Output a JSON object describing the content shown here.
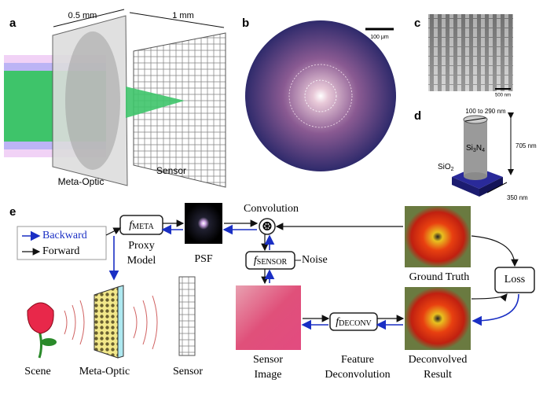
{
  "panel_a": {
    "label": "a",
    "thickness": "0.5 mm",
    "distance": "1 mm",
    "optic_label": "Meta-Optic",
    "sensor_label": "Sensor"
  },
  "panel_b": {
    "label": "b",
    "scale": "100 μm"
  },
  "panel_c": {
    "label": "c",
    "scale": "500 nm"
  },
  "panel_d": {
    "label": "d",
    "diameter": "100 to 290 nm",
    "pillar": [
      "Si",
      "3",
      "N",
      "4"
    ],
    "substrate": [
      "SiO",
      "2"
    ],
    "height": "705 nm",
    "pitch": "350 nm"
  },
  "panel_e": {
    "label": "e",
    "legend": {
      "backward": "Backward",
      "forward": "Forward"
    },
    "f_meta": {
      "symbol": "f",
      "subscript": "META"
    },
    "proxy_model": [
      "Proxy",
      "Model"
    ],
    "psf": "PSF",
    "convolution": "Convolution",
    "f_sensor": {
      "symbol": "f",
      "subscript": "SENSOR"
    },
    "noise": "Noise",
    "ground_truth": "Ground Truth",
    "loss": "Loss",
    "sensor_image": [
      "Sensor",
      "Image"
    ],
    "f_deconv": {
      "symbol": "f",
      "subscript": "DECONV"
    },
    "feature_deconvolution": [
      "Feature",
      "Deconvolution"
    ],
    "deconvolved_result": [
      "Deconvolved",
      "Result"
    ],
    "scene": "Scene",
    "meta_optic": "Meta-Optic",
    "sensor": "Sensor"
  }
}
